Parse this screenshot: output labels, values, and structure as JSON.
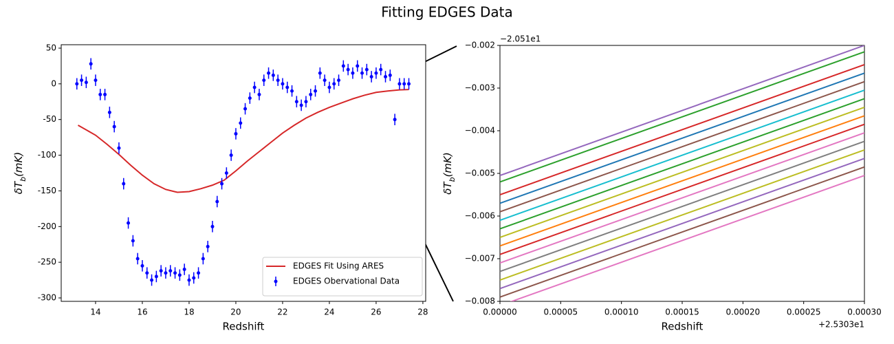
{
  "title": "Fitting EDGES Data",
  "chart_data": [
    {
      "type": "line",
      "xlabel": "Redshift",
      "ylabel": "δTb(mK)",
      "xlim": [
        12.53,
        28.12
      ],
      "ylim": [
        -304.8,
        54.8
      ],
      "xticks": [
        14,
        16,
        18,
        20,
        22,
        24,
        26,
        28
      ],
      "yticks": [
        -300,
        -250,
        -200,
        -150,
        -100,
        -50,
        0,
        50
      ],
      "legend": "lower right",
      "series": [
        {
          "name": "EDGES Fit Using ARES",
          "color": "#d62728",
          "style": "line",
          "x": [
            13.25,
            14,
            14.5,
            15,
            15.5,
            16,
            16.5,
            17,
            17.5,
            18,
            18.5,
            19,
            19.5,
            20,
            20.5,
            21,
            21.5,
            22,
            22.5,
            23,
            23.5,
            24,
            24.5,
            25,
            25.5,
            26,
            26.5,
            27,
            27.4
          ],
          "values": [
            -58,
            -72,
            -85,
            -99,
            -114,
            -128,
            -140,
            -148,
            -152,
            -151,
            -147,
            -142,
            -135,
            -122,
            -108,
            -95,
            -82,
            -69,
            -58,
            -48,
            -40,
            -33,
            -27,
            -21,
            -16,
            -12,
            -10,
            -8.5,
            -8
          ]
        },
        {
          "name": "EDGES Obervational Data",
          "color": "#0000ff",
          "style": "errorbar",
          "yerr": 8,
          "x": [
            13.2,
            13.4,
            13.6,
            13.8,
            14.0,
            14.2,
            14.4,
            14.6,
            14.8,
            15.0,
            15.2,
            15.4,
            15.6,
            15.8,
            16.0,
            16.2,
            16.4,
            16.6,
            16.8,
            17.0,
            17.2,
            17.4,
            17.6,
            17.8,
            18.0,
            18.2,
            18.4,
            18.6,
            18.8,
            19.0,
            19.2,
            19.4,
            19.6,
            19.8,
            20.0,
            20.2,
            20.4,
            20.6,
            20.8,
            21.0,
            21.2,
            21.4,
            21.6,
            21.8,
            22.0,
            22.2,
            22.4,
            22.6,
            22.8,
            23.0,
            23.2,
            23.4,
            23.6,
            23.8,
            24.0,
            24.2,
            24.4,
            24.6,
            24.8,
            25.0,
            25.2,
            25.4,
            25.6,
            25.8,
            26.0,
            26.2,
            26.4,
            26.6,
            26.8,
            27.0,
            27.2,
            27.4
          ],
          "values": [
            0,
            5,
            2,
            28,
            5,
            -15,
            -15,
            -40,
            -60,
            -90,
            -140,
            -195,
            -220,
            -245,
            -255,
            -265,
            -275,
            -270,
            -262,
            -265,
            -262,
            -265,
            -268,
            -260,
            -275,
            -272,
            -265,
            -245,
            -228,
            -200,
            -165,
            -140,
            -125,
            -100,
            -70,
            -55,
            -35,
            -20,
            -5,
            -15,
            5,
            15,
            12,
            5,
            0,
            -5,
            -10,
            -25,
            -30,
            -25,
            -15,
            -10,
            15,
            5,
            -5,
            0,
            5,
            25,
            20,
            15,
            25,
            15,
            20,
            10,
            15,
            20,
            10,
            12,
            -50,
            0,
            0,
            0
          ]
        }
      ]
    },
    {
      "type": "line",
      "xlabel": "Redshift",
      "ylabel": "δTb(mK)",
      "xoffset": "+2.5303e1",
      "yoffset": "−2.051e1",
      "xlim": [
        0,
        0.0003
      ],
      "ylim": [
        -0.008,
        -0.002
      ],
      "xticks": [
        {
          "value": 0,
          "label": "0.00000"
        },
        {
          "value": 5e-05,
          "label": "0.00005"
        },
        {
          "value": 0.0001,
          "label": "0.00010"
        },
        {
          "value": 0.00015,
          "label": "0.00015"
        },
        {
          "value": 0.0002,
          "label": "0.00020"
        },
        {
          "value": 0.00025,
          "label": "0.00025"
        },
        {
          "value": 0.0003,
          "label": "0.00030"
        }
      ],
      "yticks": [
        {
          "value": -0.008,
          "label": "−0.008"
        },
        {
          "value": -0.007,
          "label": "−0.007"
        },
        {
          "value": -0.006,
          "label": "−0.006"
        },
        {
          "value": -0.005,
          "label": "−0.005"
        },
        {
          "value": -0.004,
          "label": "−0.004"
        },
        {
          "value": -0.003,
          "label": "−0.003"
        },
        {
          "value": -0.002,
          "label": "−0.002"
        }
      ],
      "x": [
        0,
        0.0003
      ],
      "series": [
        {
          "color": "#9467bd",
          "values": [
            -0.00505,
            -0.002
          ]
        },
        {
          "color": "#2ca02c",
          "values": [
            -0.0052,
            -0.00215
          ]
        },
        {
          "color": "#d62728",
          "values": [
            -0.0055,
            -0.00245
          ]
        },
        {
          "color": "#1f77b4",
          "values": [
            -0.0057,
            -0.00265
          ]
        },
        {
          "color": "#8c564b",
          "values": [
            -0.0059,
            -0.00285
          ]
        },
        {
          "color": "#17becf",
          "values": [
            -0.0061,
            -0.00305
          ]
        },
        {
          "color": "#2ca02c",
          "values": [
            -0.0063,
            -0.00325
          ]
        },
        {
          "color": "#bcbd22",
          "values": [
            -0.0065,
            -0.00345
          ]
        },
        {
          "color": "#ff7f0e",
          "values": [
            -0.0067,
            -0.00365
          ]
        },
        {
          "color": "#d62728",
          "values": [
            -0.0069,
            -0.00385
          ]
        },
        {
          "color": "#e377c2",
          "values": [
            -0.0071,
            -0.00405
          ]
        },
        {
          "color": "#7f7f7f",
          "values": [
            -0.0073,
            -0.00425
          ]
        },
        {
          "color": "#bcbd22",
          "values": [
            -0.0075,
            -0.00445
          ]
        },
        {
          "color": "#9467bd",
          "values": [
            -0.0077,
            -0.00465
          ]
        },
        {
          "color": "#8c564b",
          "values": [
            -0.0079,
            -0.00485
          ]
        },
        {
          "color": "#e377c2",
          "values": [
            -0.0081,
            -0.00505
          ]
        }
      ]
    }
  ]
}
